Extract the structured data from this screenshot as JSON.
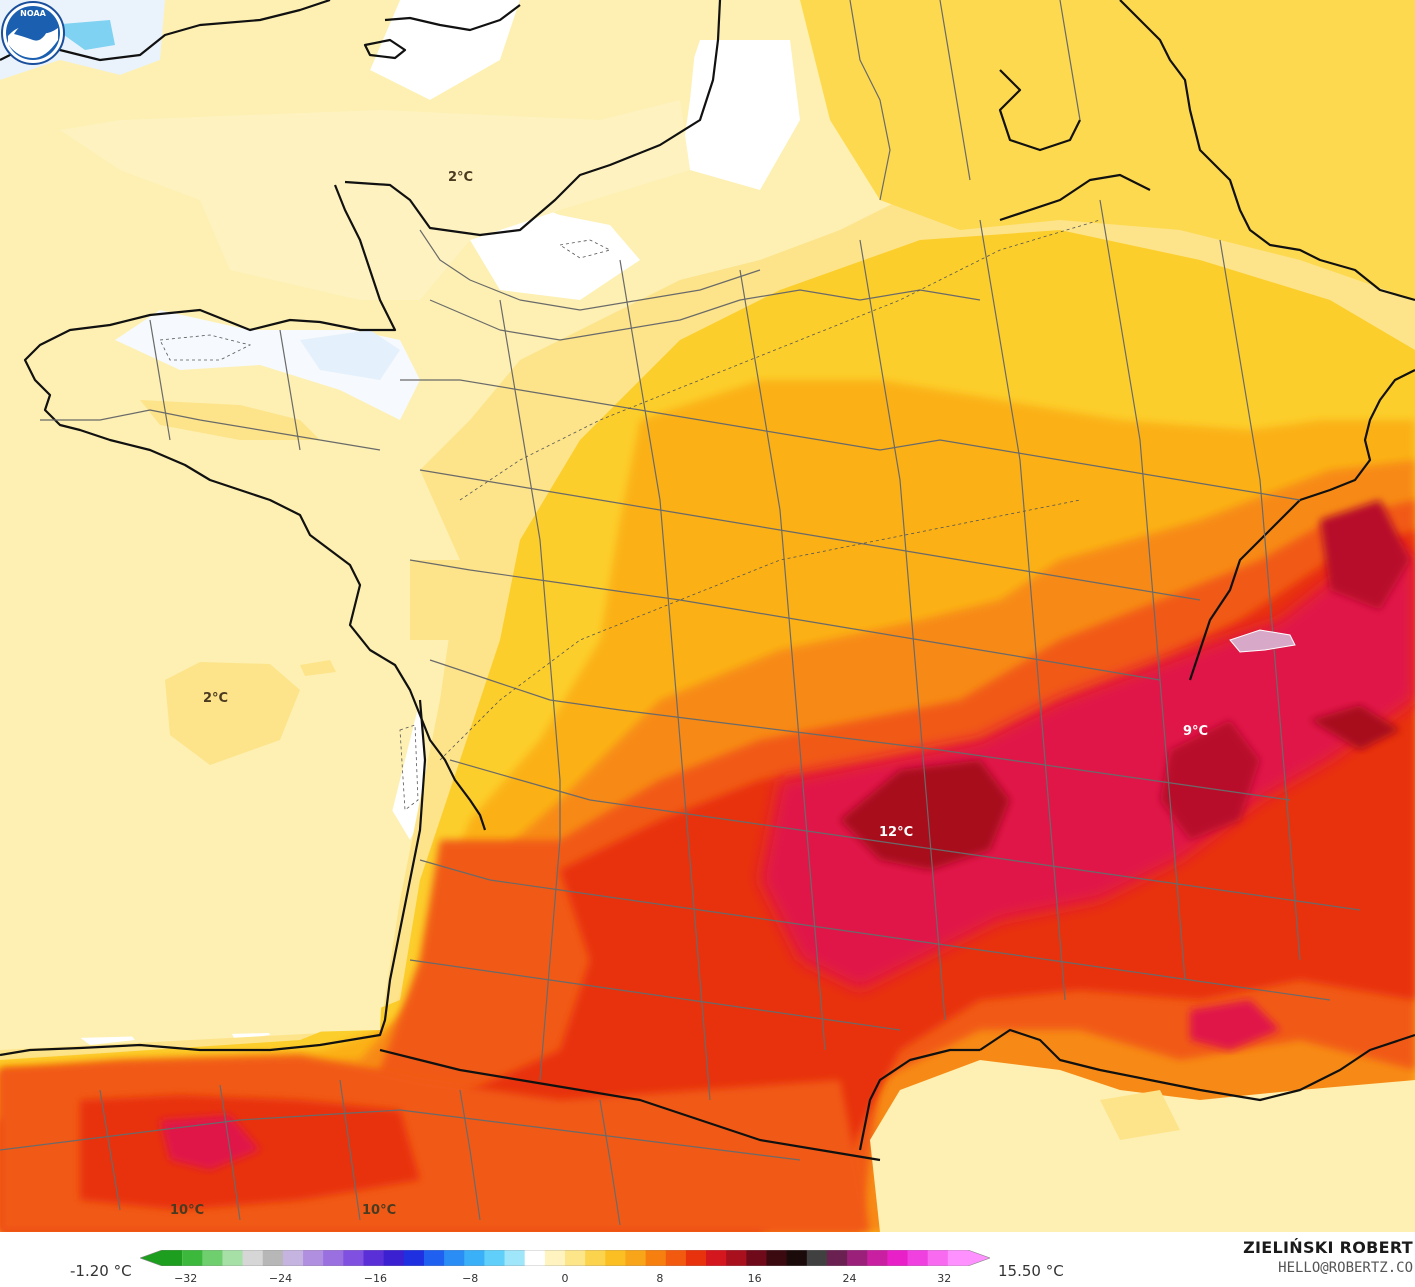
{
  "map": {
    "contour_labels": [
      {
        "text": "2°C"
      },
      {
        "text": "2°C"
      },
      {
        "text": "12°C"
      },
      {
        "text": "9°C"
      },
      {
        "text": "10°C"
      },
      {
        "text": "10°C"
      }
    ]
  },
  "footer": {
    "min_value": "-1.20 °C",
    "max_value": "15.50 °C",
    "colorbar_ticks": [
      "−32",
      "−24",
      "−16",
      "−8",
      "0",
      "8",
      "16",
      "24",
      "32"
    ],
    "author_name": "ZIELIŃSKI ROBERT",
    "author_email": "HELLO@ROBERTZ.CO"
  },
  "colorbar": {
    "range": [
      -34,
      34
    ],
    "colors": [
      "#1e9e1e",
      "#3cb83c",
      "#6fcf6f",
      "#a7e0a7",
      "#d6d6d6",
      "#b7b7b7",
      "#c5b3e0",
      "#b08fe0",
      "#9a6fe0",
      "#8050e0",
      "#5a2fd8",
      "#3a20d0",
      "#1e30e0",
      "#2060f0",
      "#2a8cf5",
      "#3ab0f8",
      "#60d0fa",
      "#a0e6fb",
      "#ffffff",
      "#fff4c0",
      "#fde68a",
      "#fcd34d",
      "#fbbf24",
      "#f9a51a",
      "#f77f10",
      "#f25a10",
      "#e8320e",
      "#d4161e",
      "#a8101e",
      "#6e0a1a",
      "#3a0a10",
      "#1a0a0a",
      "#404040",
      "#6a2050",
      "#9a207a",
      "#c820a0",
      "#e820c8",
      "#f040e0",
      "#f86af0",
      "#ff90ff"
    ]
  },
  "logo": {
    "text": "NOAA"
  }
}
